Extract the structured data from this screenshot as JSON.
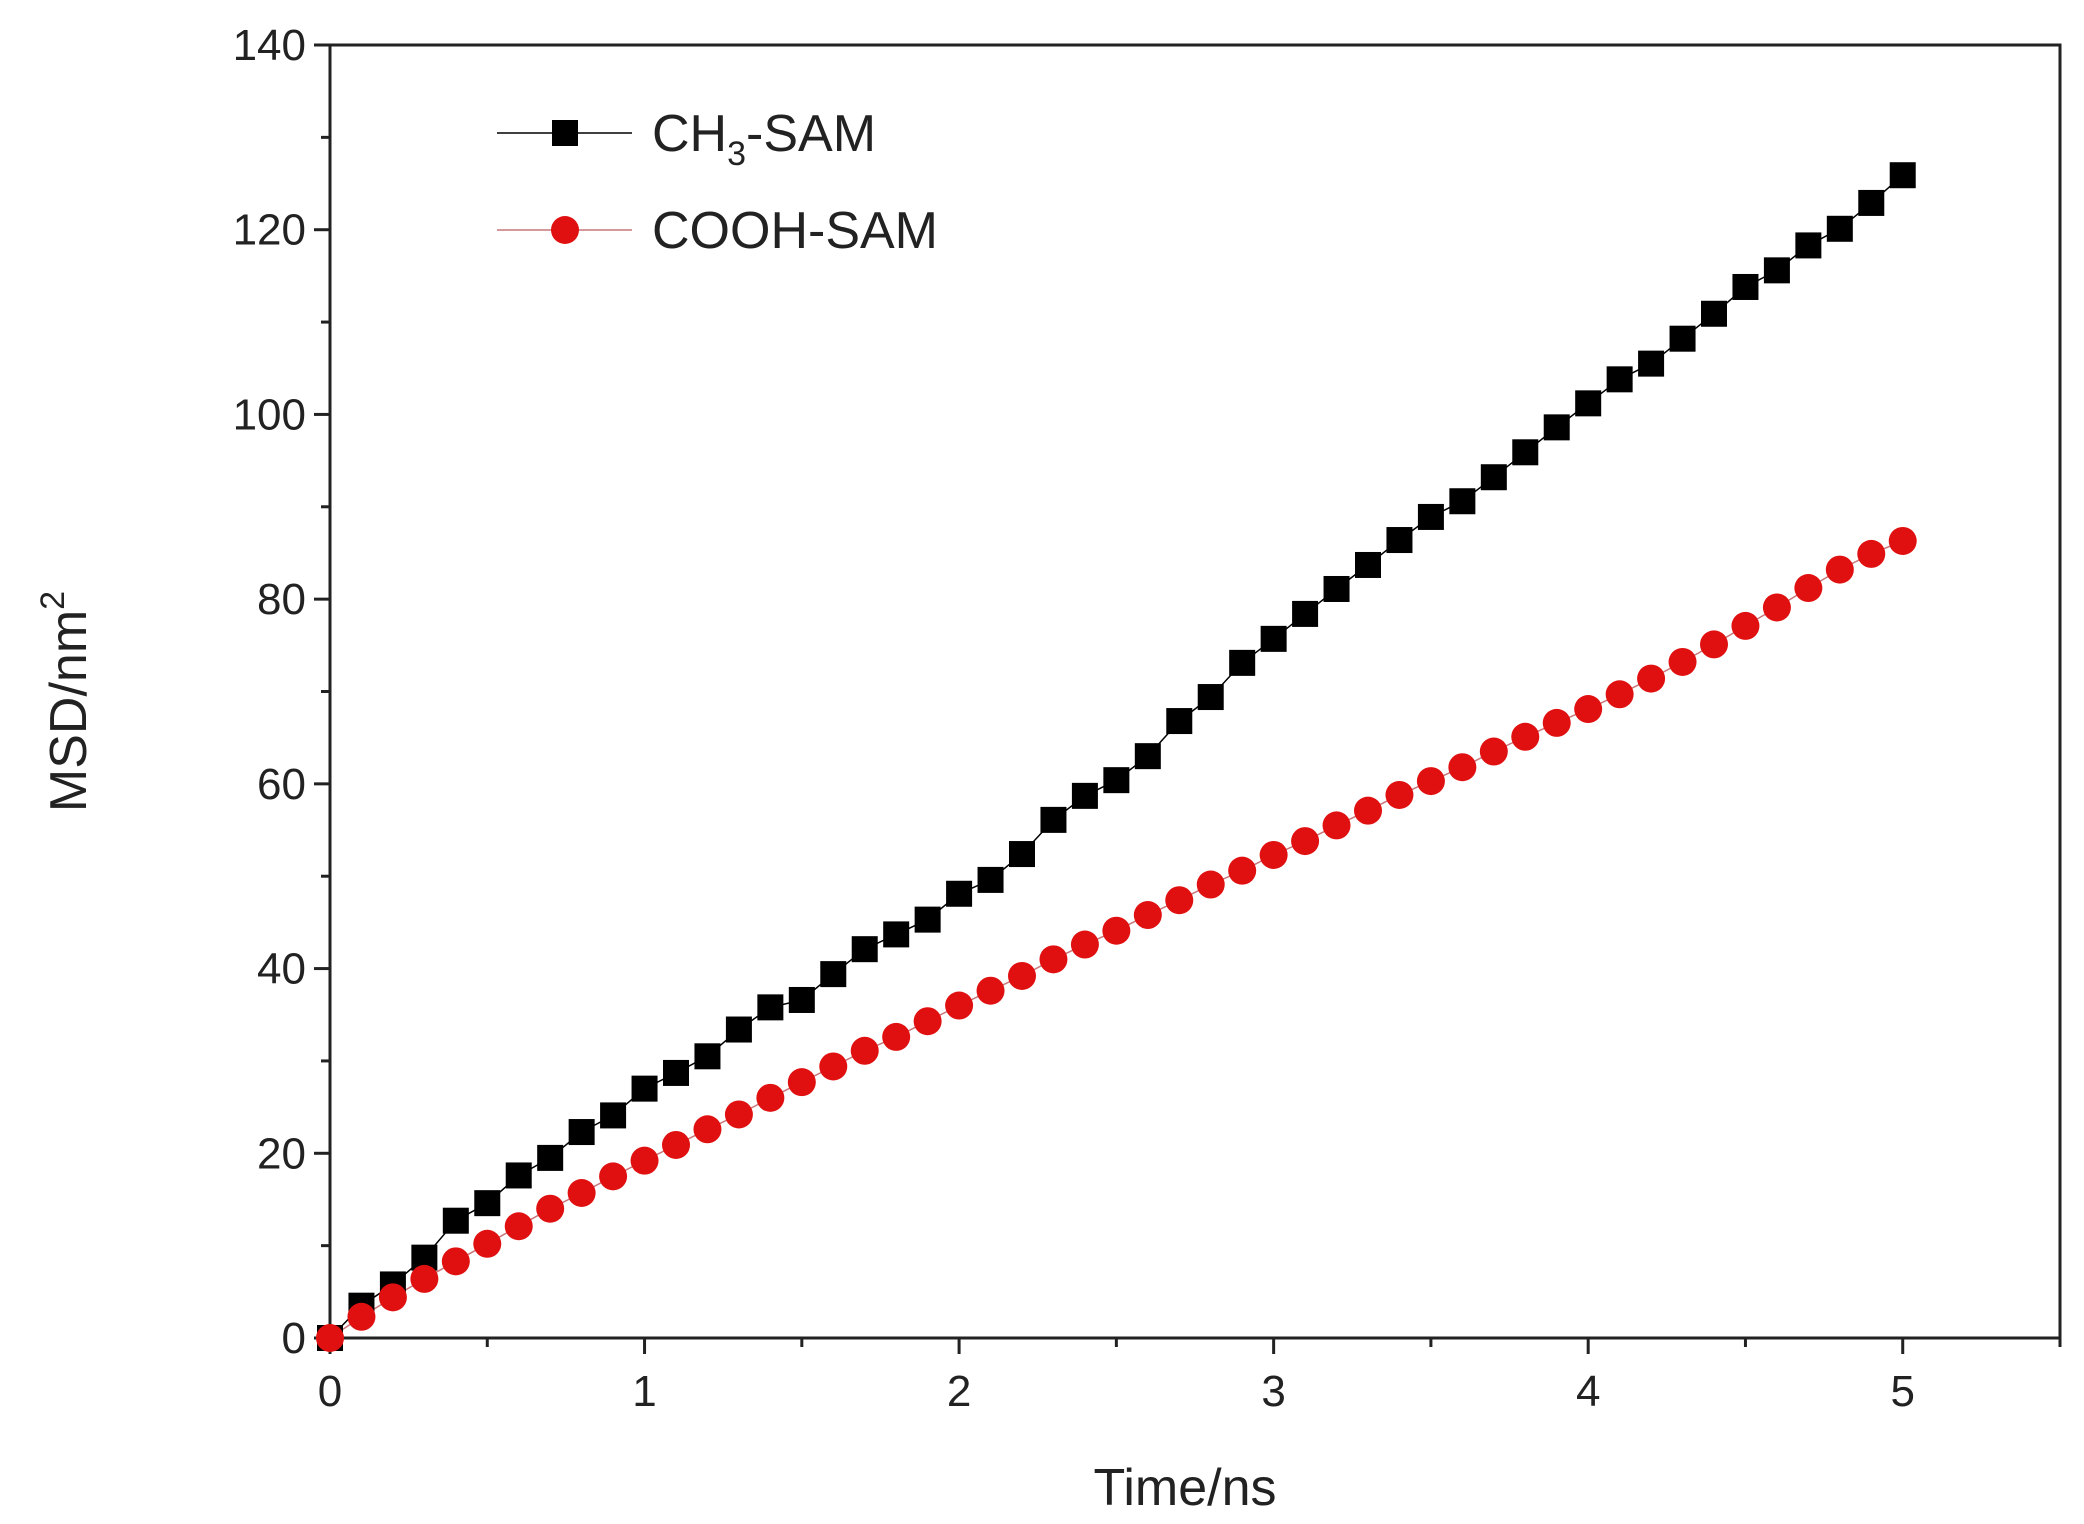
{
  "chart_data": {
    "type": "scatter",
    "title": "",
    "xlabel": "Time/ns",
    "ylabel": "MSD/nm",
    "ylabel_sup": "2",
    "xlim": [
      0,
      5.5
    ],
    "ylim": [
      0,
      140
    ],
    "xticks": [
      0,
      1,
      2,
      3,
      4,
      5
    ],
    "yticks": [
      0,
      20,
      40,
      60,
      80,
      100,
      120,
      140
    ],
    "grid": false,
    "legend_position": "top-left",
    "x": [
      0,
      0.1,
      0.2,
      0.3,
      0.4,
      0.5,
      0.6,
      0.7,
      0.8,
      0.9,
      1.0,
      1.1,
      1.2,
      1.3,
      1.4,
      1.5,
      1.6,
      1.7,
      1.8,
      1.9,
      2.0,
      2.1,
      2.2,
      2.3,
      2.4,
      2.5,
      2.6,
      2.7,
      2.8,
      2.9,
      3.0,
      3.1,
      3.2,
      3.3,
      3.4,
      3.5,
      3.6,
      3.7,
      3.8,
      3.9,
      4.0,
      4.1,
      4.2,
      4.3,
      4.4,
      4.5,
      4.6,
      4.7,
      4.8,
      4.9,
      5.0
    ],
    "series": [
      {
        "name": "CH3-SAM",
        "legend_main": "CH",
        "legend_sub": "3",
        "legend_tail": "-SAM",
        "marker": "square",
        "color": "#000000",
        "values": [
          0,
          3.5,
          5.8,
          8.7,
          12.7,
          14.6,
          17.6,
          19.5,
          22.3,
          24.1,
          27.0,
          28.7,
          30.5,
          33.4,
          35.8,
          36.6,
          39.4,
          42.1,
          43.7,
          45.3,
          48.1,
          49.6,
          52.4,
          56.1,
          58.7,
          60.4,
          63.0,
          66.8,
          69.4,
          73.1,
          75.7,
          78.4,
          81.1,
          83.7,
          86.4,
          88.9,
          90.6,
          93.2,
          95.9,
          98.6,
          101.2,
          103.8,
          105.5,
          108.2,
          110.9,
          113.8,
          115.6,
          118.3,
          120.1,
          122.9,
          125.9
        ]
      },
      {
        "name": "COOH-SAM",
        "legend_main": "COOH-SAM",
        "marker": "circle",
        "color": "#e01010",
        "values": [
          0,
          2.3,
          4.4,
          6.4,
          8.3,
          10.2,
          12.1,
          14.0,
          15.7,
          17.5,
          19.2,
          20.9,
          22.6,
          24.2,
          26.0,
          27.7,
          29.4,
          31.1,
          32.6,
          34.3,
          36.0,
          37.6,
          39.2,
          41.0,
          42.6,
          44.1,
          45.8,
          47.4,
          49.1,
          50.6,
          52.3,
          53.8,
          55.5,
          57.1,
          58.8,
          60.3,
          61.8,
          63.5,
          65.1,
          66.6,
          68.1,
          69.7,
          71.4,
          73.2,
          75.1,
          77.1,
          79.1,
          81.2,
          83.2,
          84.9,
          86.3
        ]
      }
    ]
  }
}
